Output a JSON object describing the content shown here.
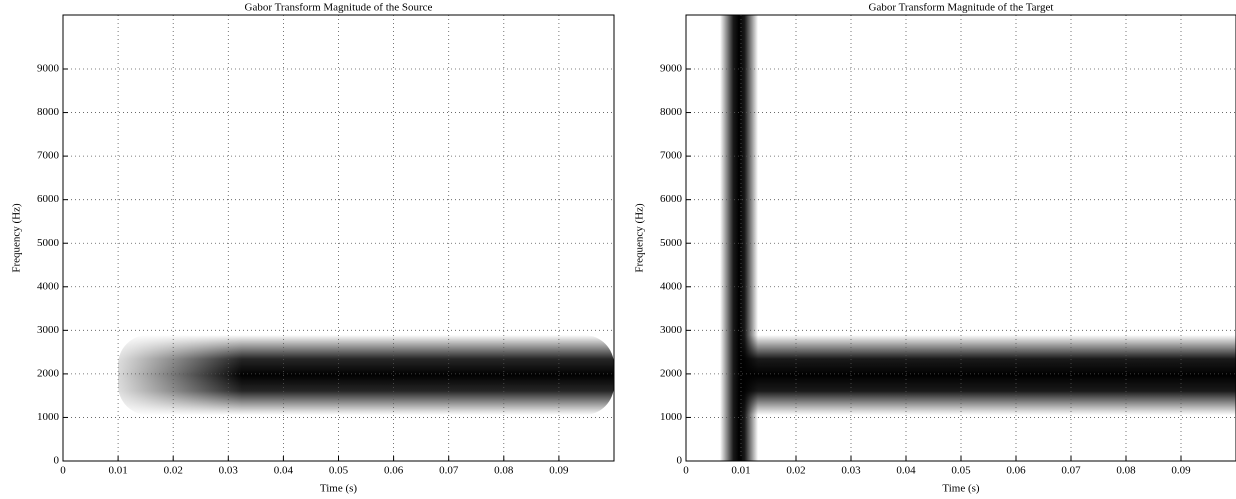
{
  "chart_data": [
    {
      "type": "heatmap",
      "title": "Gabor Transform Magnitude of the Source",
      "x_label": "Time (s)",
      "y_label": "Frequency (Hz)",
      "xlim": [
        0,
        0.1
      ],
      "ylim": [
        0,
        10240
      ],
      "xticks": [
        0,
        0.01,
        0.02,
        0.03,
        0.04,
        0.05,
        0.06,
        0.07,
        0.08,
        0.09
      ],
      "yticks": [
        0,
        1000,
        2000,
        3000,
        4000,
        5000,
        6000,
        7000,
        8000,
        9000
      ],
      "grid": true
    },
    {
      "type": "heatmap",
      "title": "Gabor Transform Magnitude of the Target",
      "x_label": "Time (s)",
      "y_label": "Frequency (Hz)",
      "xlim": [
        0,
        0.1
      ],
      "ylim": [
        0,
        10240
      ],
      "xticks": [
        0,
        0.01,
        0.02,
        0.03,
        0.04,
        0.05,
        0.06,
        0.07,
        0.08,
        0.09
      ],
      "yticks": [
        0,
        1000,
        2000,
        3000,
        4000,
        5000,
        6000,
        7000,
        8000,
        9000
      ],
      "grid": true
    }
  ]
}
